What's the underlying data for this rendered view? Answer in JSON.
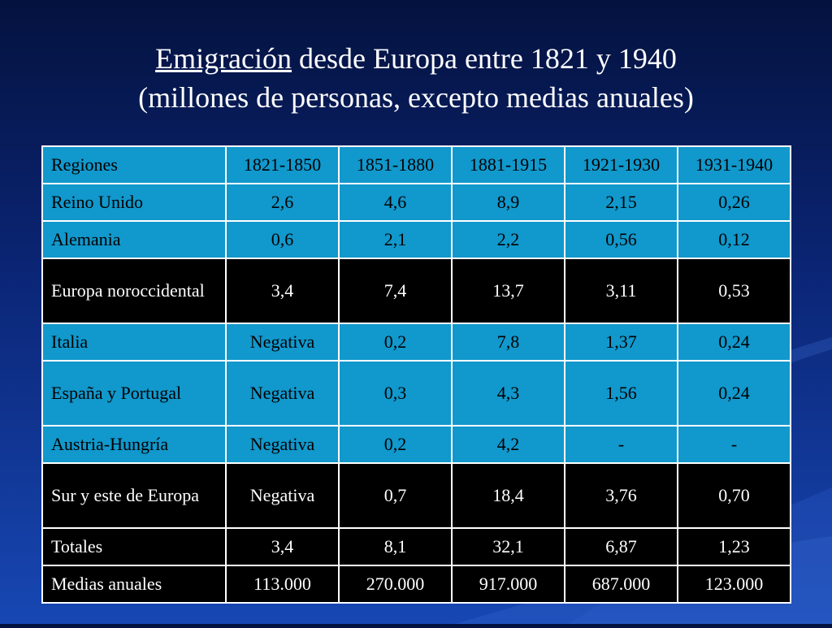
{
  "title": {
    "line1_underlined": "Emigración",
    "line1_rest": " desde Europa entre 1821 y 1940",
    "line2": "(millones de personas, excepto medias anuales)"
  },
  "table": {
    "headers": [
      "Regiones",
      "1821-1850",
      "1851-1880",
      "1881-1915",
      "1921-1930",
      "1931-1940"
    ],
    "rows": [
      [
        "Reino Unido",
        "2,6",
        "4,6",
        "8,9",
        "2,15",
        "0,26"
      ],
      [
        "Alemania",
        "0,6",
        "2,1",
        "2,2",
        "0,56",
        "0,12"
      ],
      [
        "Europa noroccidental",
        "3,4",
        "7,4",
        "13,7",
        "3,11",
        "0,53"
      ],
      [
        "Italia",
        "Negativa",
        "0,2",
        "7,8",
        "1,37",
        "0,24"
      ],
      [
        "España y Portugal",
        "Negativa",
        "0,3",
        "4,3",
        "1,56",
        "0,24"
      ],
      [
        "Austria-Hungría",
        "Negativa",
        "0,2",
        "4,2",
        "-",
        "-"
      ],
      [
        "Sur y este de Europa",
        "Negativa",
        "0,7",
        "18,4",
        "3,76",
        "0,70"
      ],
      [
        "Totales",
        "3,4",
        "8,1",
        "32,1",
        "6,87",
        "1,23"
      ],
      [
        "Medias anuales",
        "113.000",
        "270.000",
        "917.000",
        "687.000",
        "123.000"
      ]
    ]
  },
  "colors": {
    "background_top": "#04123f",
    "background_bottom": "#1747b3",
    "row_blue": "#1198cc",
    "row_dark": "#000000",
    "border": "#ffffff"
  }
}
